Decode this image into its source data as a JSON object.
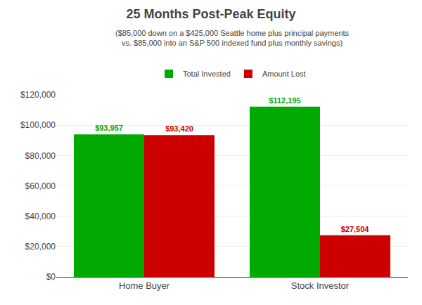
{
  "chart_data": {
    "type": "bar",
    "title": "25 Months Post-Peak Equity",
    "subtitle": "($85,000 down on a $425,000 Seattle home plus principal payments\nvs. $85,000 into an S&P 500 indexed fund plus monthly savings)",
    "categories": [
      "Home Buyer",
      "Stock Investor"
    ],
    "series": [
      {
        "name": "Total Invested",
        "color": "#00AA00",
        "values": [
          93957,
          112195
        ],
        "value_labels": [
          "$93,957",
          "$112,195"
        ]
      },
      {
        "name": "Amount Lost",
        "color": "#CC0000",
        "values": [
          93420,
          27504
        ],
        "value_labels": [
          "$93,420",
          "$27,504"
        ]
      }
    ],
    "ylim": [
      0,
      120000
    ],
    "yticks": [
      {
        "value": 0,
        "label": "$0"
      },
      {
        "value": 20000,
        "label": "$20,000"
      },
      {
        "value": 40000,
        "label": "$40,000"
      },
      {
        "value": 60000,
        "label": "$60,000"
      },
      {
        "value": 80000,
        "label": "$80,000"
      },
      {
        "value": 100000,
        "label": "$100,000"
      },
      {
        "value": 120000,
        "label": "$120,000"
      }
    ],
    "grid": true,
    "legend": "upper center",
    "data_labels": true
  }
}
